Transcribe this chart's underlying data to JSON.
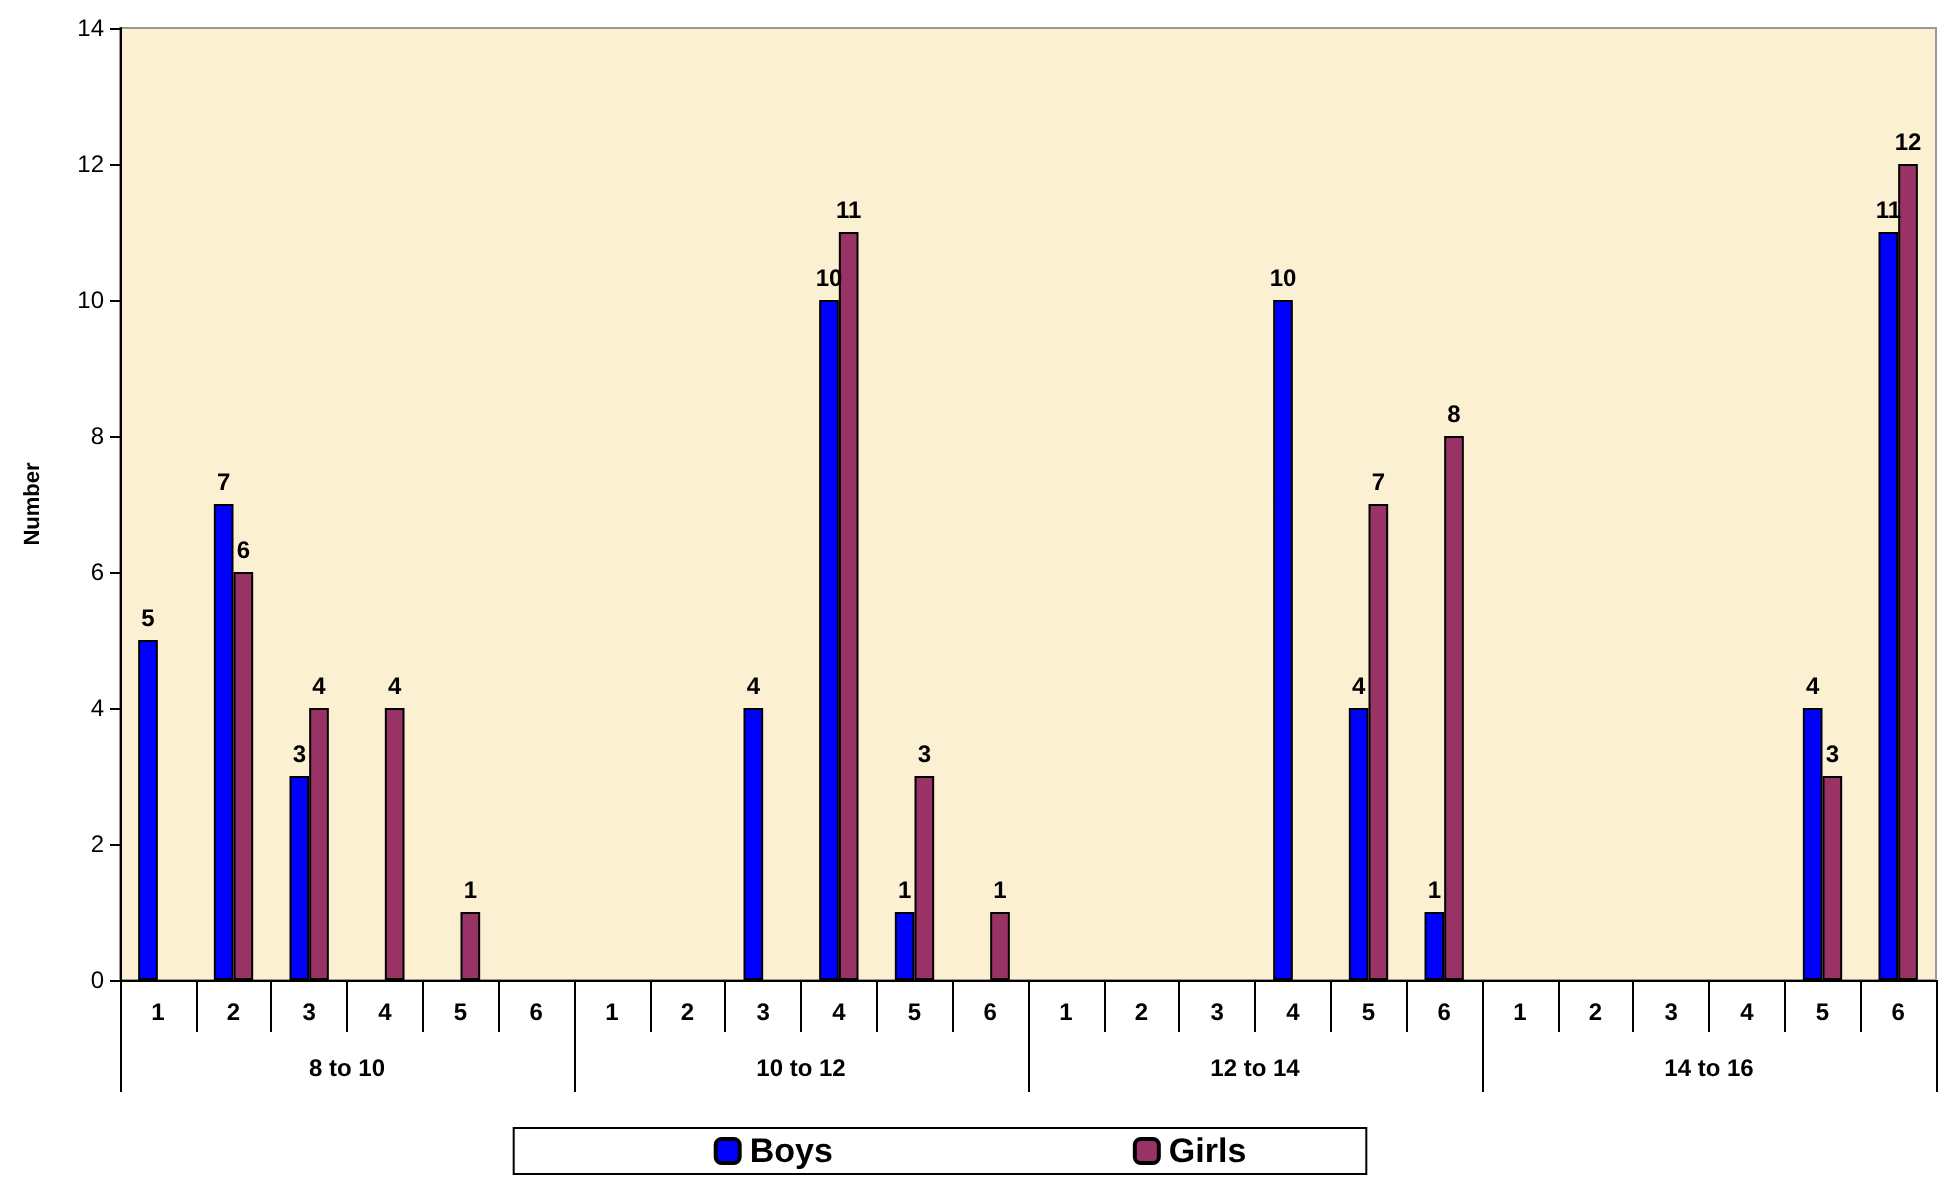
{
  "chart_data": {
    "type": "bar",
    "ylabel": "Number",
    "categories": [
      "1",
      "2",
      "3",
      "4",
      "5",
      "6",
      "1",
      "2",
      "3",
      "4",
      "5",
      "6",
      "1",
      "2",
      "3",
      "4",
      "5",
      "6",
      "1",
      "2",
      "3",
      "4",
      "5",
      "6"
    ],
    "annotations": [
      "8 to 10",
      "10 to 12",
      "12 to 14",
      "14 to 16"
    ],
    "series": [
      {
        "name": "Boys",
        "color": "#0000ff",
        "values": [
          5,
          7,
          3,
          null,
          null,
          null,
          null,
          null,
          4,
          10,
          1,
          null,
          null,
          null,
          null,
          10,
          4,
          1,
          null,
          null,
          null,
          null,
          4,
          11
        ]
      },
      {
        "name": "Girls",
        "color": "#993366",
        "values": [
          null,
          6,
          4,
          4,
          1,
          null,
          null,
          null,
          null,
          11,
          3,
          1,
          null,
          null,
          null,
          null,
          7,
          8,
          null,
          null,
          null,
          null,
          3,
          12
        ]
      }
    ],
    "ylim": [
      0,
      14
    ],
    "yticks": [
      0,
      2,
      4,
      6,
      8,
      10,
      12,
      14
    ],
    "grid": false,
    "legend": "bottom",
    "data_labels": true
  }
}
